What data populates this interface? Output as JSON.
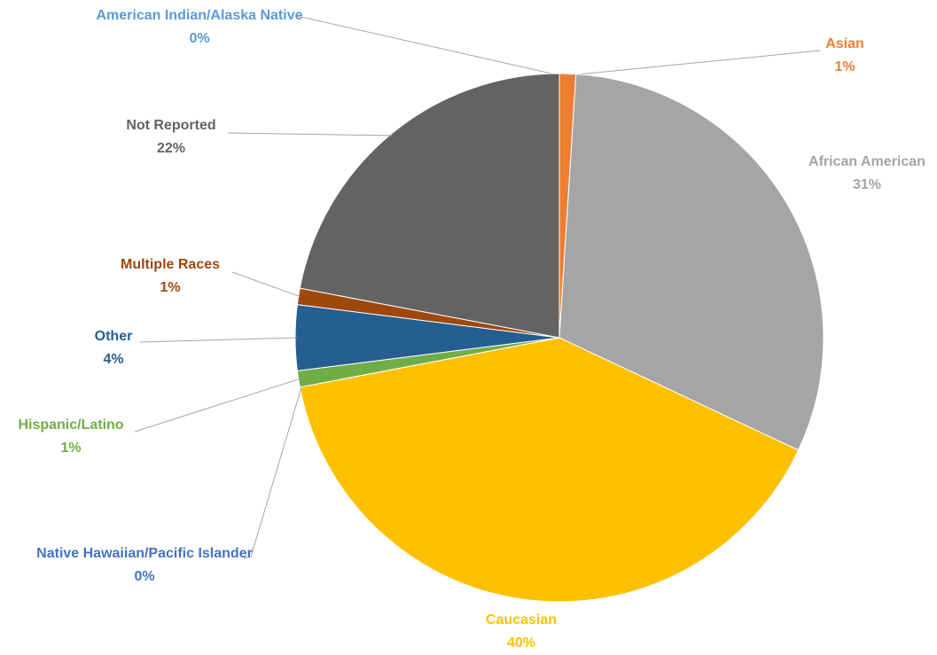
{
  "chart_data": {
    "type": "pie",
    "categories": [
      "American Indian/Alaska Native",
      "Asian",
      "African American",
      "Caucasian",
      "Native Hawaiian/Pacific Islander",
      "Hispanic/Latino",
      "Other",
      "Multiple Races",
      "Not Reported"
    ],
    "values": [
      0,
      1,
      31,
      40,
      0,
      1,
      4,
      1,
      22
    ],
    "value_labels": [
      "0%",
      "1%",
      "31%",
      "40%",
      "0%",
      "1%",
      "4%",
      "1%",
      "22%"
    ],
    "colors": [
      "#5b9bd5",
      "#ed7d31",
      "#a5a5a5",
      "#ffc000",
      "#4472c4",
      "#70ad47",
      "#255e91",
      "#9e480e",
      "#636363"
    ]
  }
}
